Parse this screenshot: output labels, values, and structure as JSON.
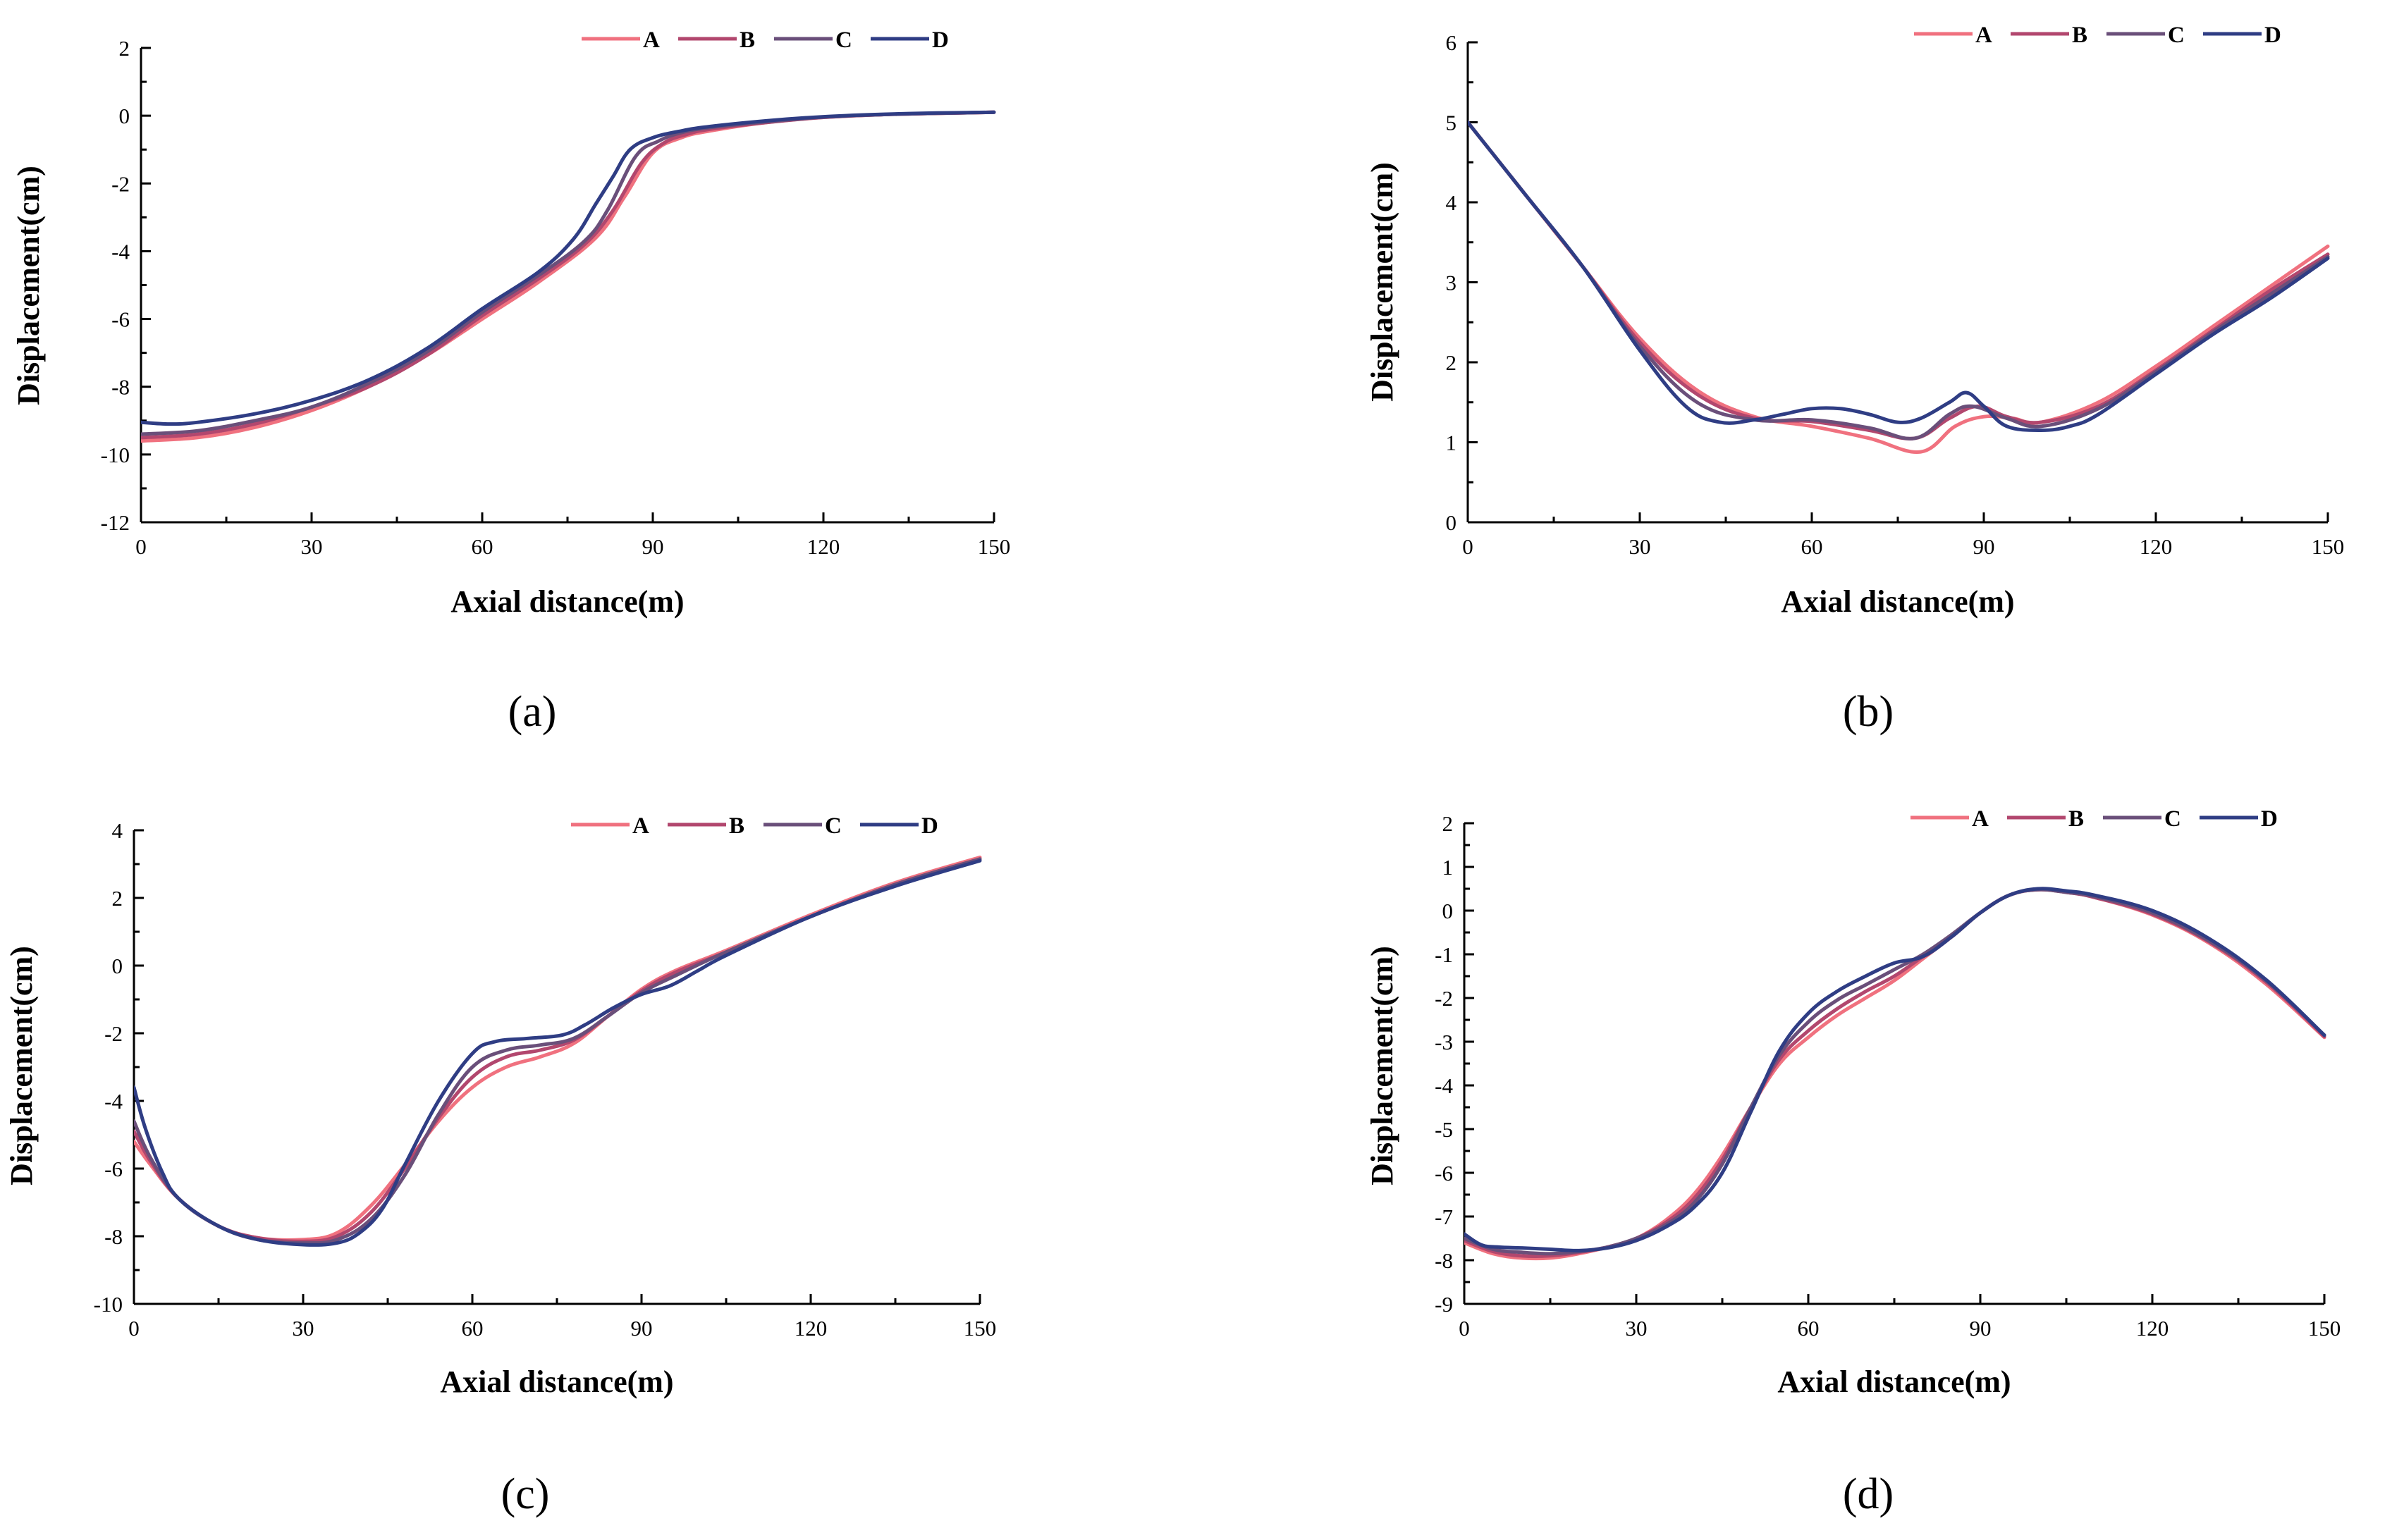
{
  "colors": {
    "A": "#f0717f",
    "B": "#b2476e",
    "C": "#6a4f7a",
    "D": "#2f3d84"
  },
  "chart_data": [
    {
      "type": "line",
      "panel_label": "(a)",
      "xlabel": "Axial distance(m)",
      "ylabel": "Displacement(cm)",
      "xlim": [
        0,
        150
      ],
      "ylim": [
        -12,
        2
      ],
      "xticks": [
        0,
        30,
        60,
        90,
        120,
        150
      ],
      "yticks": [
        -12,
        -10,
        -8,
        -6,
        -4,
        -2,
        0,
        2
      ],
      "legend": [
        "A",
        "B",
        "C",
        "D"
      ],
      "series": [
        {
          "name": "A",
          "x": [
            0,
            10,
            20,
            30,
            40,
            50,
            60,
            70,
            80,
            85,
            90,
            95,
            100,
            110,
            120,
            130,
            140,
            150
          ],
          "y": [
            -9.6,
            -9.5,
            -9.2,
            -8.7,
            -8.0,
            -7.1,
            -6.0,
            -4.9,
            -3.6,
            -2.4,
            -1.1,
            -0.65,
            -0.45,
            -0.2,
            -0.05,
            0.03,
            0.07,
            0.1
          ]
        },
        {
          "name": "B",
          "x": [
            0,
            10,
            20,
            30,
            40,
            50,
            60,
            70,
            78,
            83,
            88,
            92,
            96,
            100,
            110,
            120,
            130,
            140,
            150
          ],
          "y": [
            -9.5,
            -9.4,
            -9.1,
            -8.6,
            -8.0,
            -7.1,
            -5.9,
            -4.8,
            -3.8,
            -2.8,
            -1.4,
            -0.8,
            -0.55,
            -0.4,
            -0.2,
            -0.05,
            0.03,
            0.07,
            0.1
          ]
        },
        {
          "name": "C",
          "x": [
            0,
            10,
            20,
            30,
            40,
            50,
            60,
            70,
            78,
            82,
            87,
            91,
            95,
            100,
            110,
            120,
            130,
            140,
            150
          ],
          "y": [
            -9.4,
            -9.3,
            -9.0,
            -8.6,
            -7.9,
            -7.0,
            -5.8,
            -4.7,
            -3.7,
            -2.8,
            -1.2,
            -0.75,
            -0.5,
            -0.35,
            -0.18,
            -0.04,
            0.03,
            0.07,
            0.1
          ]
        },
        {
          "name": "D",
          "x": [
            0,
            5,
            10,
            20,
            30,
            40,
            50,
            60,
            70,
            76,
            80,
            83,
            86,
            90,
            95,
            100,
            110,
            120,
            130,
            140,
            150
          ],
          "y": [
            -9.05,
            -9.1,
            -9.05,
            -8.8,
            -8.4,
            -7.8,
            -6.9,
            -5.7,
            -4.6,
            -3.65,
            -2.6,
            -1.8,
            -1.0,
            -0.65,
            -0.45,
            -0.32,
            -0.15,
            -0.03,
            0.04,
            0.08,
            0.1
          ]
        }
      ]
    },
    {
      "type": "line",
      "panel_label": "(b)",
      "xlabel": "Axial distance(m)",
      "ylabel": "Displacement(cm)",
      "xlim": [
        0,
        150
      ],
      "ylim": [
        0,
        6
      ],
      "xticks": [
        0,
        30,
        60,
        90,
        120,
        150
      ],
      "yticks": [
        0,
        1,
        2,
        3,
        4,
        5,
        6
      ],
      "legend": [
        "A",
        "B",
        "C",
        "D"
      ],
      "series": [
        {
          "name": "A",
          "x": [
            0,
            10,
            20,
            30,
            40,
            50,
            60,
            70,
            79,
            85,
            90,
            95,
            100,
            110,
            120,
            130,
            140,
            150
          ],
          "y": [
            5.0,
            4.1,
            3.2,
            2.3,
            1.65,
            1.32,
            1.2,
            1.05,
            0.88,
            1.2,
            1.32,
            1.3,
            1.25,
            1.5,
            1.95,
            2.45,
            2.95,
            3.45
          ]
        },
        {
          "name": "B",
          "x": [
            0,
            10,
            20,
            30,
            40,
            50,
            60,
            70,
            78,
            84,
            89,
            94,
            100,
            110,
            120,
            130,
            140,
            150
          ],
          "y": [
            5.0,
            4.1,
            3.2,
            2.25,
            1.6,
            1.3,
            1.26,
            1.15,
            1.05,
            1.3,
            1.45,
            1.32,
            1.25,
            1.45,
            1.9,
            2.4,
            2.9,
            3.35
          ]
        },
        {
          "name": "C",
          "x": [
            0,
            10,
            20,
            30,
            40,
            50,
            60,
            70,
            78,
            84,
            88,
            94,
            100,
            110,
            120,
            130,
            140,
            150
          ],
          "y": [
            5.0,
            4.1,
            3.2,
            2.2,
            1.5,
            1.28,
            1.28,
            1.18,
            1.05,
            1.35,
            1.45,
            1.3,
            1.2,
            1.42,
            1.88,
            2.38,
            2.85,
            3.32
          ]
        },
        {
          "name": "D",
          "x": [
            0,
            10,
            20,
            30,
            38,
            44,
            50,
            55,
            60,
            65,
            70,
            75,
            79,
            84,
            87,
            90,
            94,
            100,
            105,
            110,
            120,
            130,
            140,
            150
          ],
          "y": [
            5.0,
            4.1,
            3.2,
            2.15,
            1.45,
            1.25,
            1.28,
            1.35,
            1.42,
            1.42,
            1.35,
            1.25,
            1.3,
            1.5,
            1.62,
            1.45,
            1.2,
            1.15,
            1.2,
            1.35,
            1.85,
            2.35,
            2.8,
            3.3
          ]
        }
      ]
    },
    {
      "type": "line",
      "panel_label": "(c)",
      "xlabel": "Axial distance(m)",
      "ylabel": "Displacement(cm)",
      "xlim": [
        0,
        150
      ],
      "ylim": [
        -10,
        4
      ],
      "xticks": [
        0,
        30,
        60,
        90,
        120,
        150
      ],
      "yticks": [
        -10,
        -8,
        -6,
        -4,
        -2,
        0,
        2,
        4
      ],
      "legend": [
        "A",
        "B",
        "C",
        "D"
      ],
      "series": [
        {
          "name": "A",
          "x": [
            0,
            3,
            8,
            15,
            22,
            30,
            36,
            42,
            48,
            54,
            60,
            66,
            72,
            78,
            84,
            90,
            96,
            105,
            120,
            135,
            150
          ],
          "y": [
            -5.2,
            -5.9,
            -6.9,
            -7.7,
            -8.05,
            -8.1,
            -7.9,
            -7.1,
            -5.9,
            -4.6,
            -3.6,
            -3.0,
            -2.7,
            -2.3,
            -1.5,
            -0.7,
            -0.15,
            0.45,
            1.5,
            2.45,
            3.2
          ]
        },
        {
          "name": "B",
          "x": [
            0,
            3,
            8,
            15,
            22,
            30,
            36,
            42,
            48,
            54,
            60,
            66,
            72,
            78,
            84,
            90,
            96,
            105,
            120,
            135,
            150
          ],
          "y": [
            -4.9,
            -5.8,
            -6.9,
            -7.7,
            -8.05,
            -8.15,
            -8.0,
            -7.3,
            -6.0,
            -4.5,
            -3.3,
            -2.7,
            -2.5,
            -2.2,
            -1.5,
            -0.75,
            -0.2,
            0.4,
            1.45,
            2.4,
            3.15
          ]
        },
        {
          "name": "C",
          "x": [
            0,
            3,
            8,
            15,
            22,
            30,
            36,
            42,
            48,
            54,
            60,
            66,
            72,
            78,
            84,
            90,
            96,
            105,
            120,
            135,
            150
          ],
          "y": [
            -4.6,
            -5.7,
            -6.9,
            -7.7,
            -8.1,
            -8.2,
            -8.1,
            -7.5,
            -6.2,
            -4.4,
            -3.0,
            -2.5,
            -2.35,
            -2.15,
            -1.5,
            -0.8,
            -0.3,
            0.4,
            1.45,
            2.4,
            3.15
          ]
        },
        {
          "name": "D",
          "x": [
            0,
            2,
            5,
            8,
            15,
            22,
            30,
            36,
            40,
            44,
            48,
            54,
            60,
            64,
            70,
            76,
            80,
            85,
            90,
            95,
            100,
            105,
            120,
            135,
            150
          ],
          "y": [
            -3.6,
            -4.8,
            -6.1,
            -6.9,
            -7.7,
            -8.1,
            -8.25,
            -8.2,
            -7.9,
            -7.2,
            -5.9,
            -4.0,
            -2.6,
            -2.25,
            -2.15,
            -2.05,
            -1.75,
            -1.25,
            -0.85,
            -0.6,
            -0.15,
            0.3,
            1.45,
            2.35,
            3.1
          ]
        }
      ]
    },
    {
      "type": "line",
      "panel_label": "(d)",
      "xlabel": "Axial distance(m)",
      "ylabel": "Displacement(cm)",
      "xlim": [
        0,
        150
      ],
      "ylim": [
        -9,
        2
      ],
      "xticks": [
        0,
        30,
        60,
        90,
        120,
        150
      ],
      "yticks": [
        -9,
        -8,
        -7,
        -6,
        -5,
        -4,
        -3,
        -2,
        -1,
        0,
        1,
        2
      ],
      "legend": [
        "A",
        "B",
        "C",
        "D"
      ],
      "series": [
        {
          "name": "A",
          "x": [
            0,
            5,
            10,
            15,
            20,
            25,
            30,
            35,
            40,
            45,
            50,
            55,
            60,
            65,
            70,
            75,
            80,
            85,
            90,
            95,
            100,
            105,
            110,
            120,
            130,
            140,
            150
          ],
          "y": [
            -7.6,
            -7.85,
            -7.95,
            -7.95,
            -7.85,
            -7.7,
            -7.5,
            -7.1,
            -6.5,
            -5.6,
            -4.5,
            -3.5,
            -2.9,
            -2.4,
            -2.0,
            -1.6,
            -1.1,
            -0.6,
            -0.05,
            0.35,
            0.48,
            0.42,
            0.3,
            -0.1,
            -0.75,
            -1.7,
            -2.9
          ]
        },
        {
          "name": "B",
          "x": [
            0,
            5,
            10,
            15,
            20,
            25,
            30,
            35,
            40,
            45,
            50,
            55,
            60,
            65,
            70,
            75,
            80,
            85,
            90,
            95,
            100,
            105,
            110,
            120,
            130,
            140,
            150
          ],
          "y": [
            -7.55,
            -7.8,
            -7.9,
            -7.9,
            -7.82,
            -7.7,
            -7.5,
            -7.15,
            -6.6,
            -5.7,
            -4.5,
            -3.4,
            -2.75,
            -2.25,
            -1.85,
            -1.5,
            -1.05,
            -0.6,
            -0.05,
            0.35,
            0.48,
            0.42,
            0.3,
            -0.08,
            -0.72,
            -1.65,
            -2.88
          ]
        },
        {
          "name": "C",
          "x": [
            0,
            5,
            10,
            15,
            20,
            25,
            30,
            35,
            40,
            45,
            50,
            55,
            60,
            65,
            70,
            75,
            80,
            85,
            90,
            95,
            100,
            105,
            110,
            120,
            130,
            140,
            150
          ],
          "y": [
            -7.5,
            -7.75,
            -7.82,
            -7.85,
            -7.8,
            -7.7,
            -7.5,
            -7.2,
            -6.7,
            -5.8,
            -4.5,
            -3.3,
            -2.55,
            -2.05,
            -1.7,
            -1.35,
            -1.0,
            -0.55,
            -0.05,
            0.35,
            0.48,
            0.42,
            0.32,
            -0.05,
            -0.7,
            -1.62,
            -2.85
          ]
        },
        {
          "name": "D",
          "x": [
            0,
            3,
            6,
            10,
            15,
            20,
            25,
            30,
            35,
            40,
            45,
            50,
            55,
            60,
            65,
            70,
            75,
            80,
            85,
            90,
            95,
            100,
            105,
            110,
            120,
            130,
            140,
            150
          ],
          "y": [
            -7.4,
            -7.65,
            -7.7,
            -7.72,
            -7.75,
            -7.78,
            -7.72,
            -7.55,
            -7.25,
            -6.8,
            -6.0,
            -4.6,
            -3.2,
            -2.35,
            -1.85,
            -1.5,
            -1.2,
            -1.05,
            -0.6,
            -0.05,
            0.35,
            0.5,
            0.45,
            0.35,
            0.0,
            -0.65,
            -1.6,
            -2.85
          ]
        }
      ]
    }
  ]
}
